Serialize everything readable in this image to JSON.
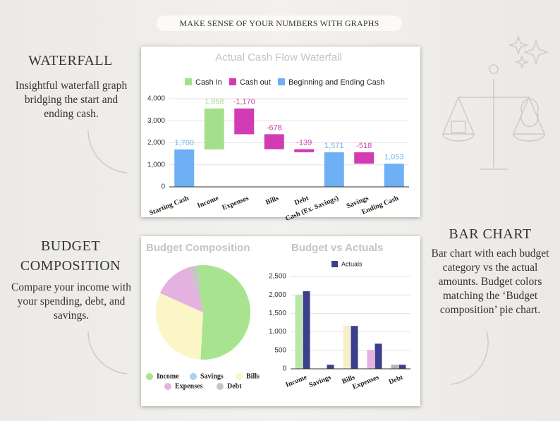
{
  "banner": "MAKE SENSE OF YOUR NUMBERS WITH GRAPHS",
  "sections": [
    {
      "heading": "WATERFALL",
      "text": "Insightful waterfall graph bridging the start and ending cash."
    },
    {
      "heading": "BUDGET COMPOSITION",
      "text": "Compare your income with your spending, debt, and savings."
    },
    {
      "heading": "BAR CHART",
      "text": "Bar chart with each budget category vs the actual amounts. Budget colors matching the ‘Budget composition’ pie chart."
    }
  ],
  "chart_data": [
    {
      "type": "waterfall",
      "title": "Actual Cash Flow Waterfall",
      "categories": [
        "Starting Cash",
        "Income",
        "Expenses",
        "Bills",
        "Debt",
        "Cash (Ex. Savings)",
        "Savings",
        "Ending Cash"
      ],
      "series": [
        {
          "name": "Cash In",
          "color": "#a5df8b",
          "values": [
            null,
            1858,
            null,
            null,
            null,
            null,
            null,
            null
          ],
          "value_labels": [
            null,
            "1,858",
            null,
            null,
            null,
            null,
            null,
            null
          ]
        },
        {
          "name": "Cash out",
          "color": "#d33bb5",
          "values": [
            null,
            null,
            -1170,
            -678,
            -139,
            null,
            -518,
            null
          ],
          "value_labels": [
            null,
            null,
            "-1,170",
            "-678",
            "-139",
            null,
            "-518",
            null
          ]
        },
        {
          "name": "Beginning and Ending Cash",
          "color": "#6db0f3",
          "total": true,
          "values": [
            1700,
            null,
            null,
            null,
            null,
            1571,
            null,
            1053
          ],
          "value_labels": [
            "1,700",
            null,
            null,
            null,
            null,
            "1,571",
            null,
            "1,053"
          ]
        }
      ],
      "ylim": [
        0,
        4000
      ],
      "yticks": [
        0,
        {
          "value": 1000,
          "label": "1,000"
        },
        {
          "value": 2000,
          "label": "2,000"
        },
        {
          "value": 3000,
          "label": "3,000"
        },
        {
          "value": 4000,
          "label": "4,000"
        }
      ]
    },
    {
      "type": "pie",
      "title": "Budget Composition",
      "categories": [
        "Income",
        "Savings",
        "Bills",
        "Expenses",
        "Debt"
      ],
      "values": [
        2000,
        0,
        1170,
        510,
        110
      ],
      "colors": [
        "#a8e48f",
        "#a9d1f2",
        "#fcf5c6",
        "#e4b1e0",
        "#c6c6c6"
      ]
    },
    {
      "type": "bar",
      "title": "Budget vs Actuals",
      "categories": [
        "Income",
        "Savings",
        "Bills",
        "Expenses",
        "Debt"
      ],
      "series": [
        {
          "color": [
            "#b9e8a6",
            "#b6d7f3",
            "#f6efc8",
            "#e4b1e0",
            "#b4b4b4"
          ],
          "values": [
            2000,
            0,
            1170,
            510,
            110
          ]
        },
        {
          "name": "Actuals",
          "color": "#3b3f8c",
          "values": [
            2100,
            110,
            1160,
            680,
            110
          ]
        }
      ],
      "ylim": [
        0,
        2500
      ],
      "yticks": [
        0,
        500,
        {
          "value": 1000,
          "label": "1,000"
        },
        {
          "value": 1500,
          "label": "1,500"
        },
        {
          "value": 2000,
          "label": "2,000"
        },
        {
          "value": 2500,
          "label": "2,500"
        }
      ]
    }
  ]
}
